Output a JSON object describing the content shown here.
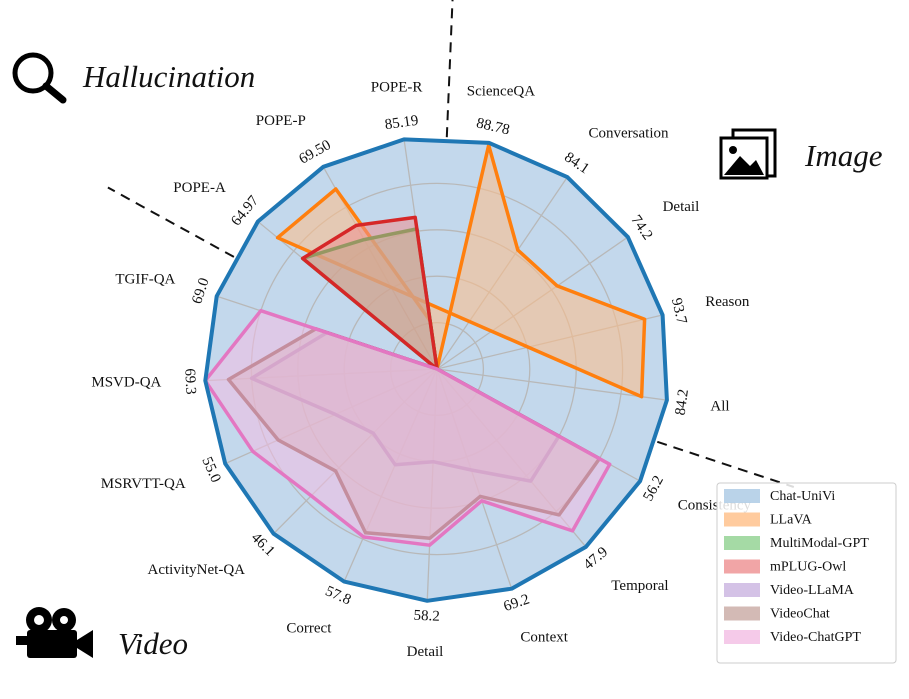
{
  "chart_data": {
    "type": "radar",
    "axes": [
      {
        "label": "ScienceQA",
        "value_label": "88.78",
        "group": "Image"
      },
      {
        "label": "Conversation",
        "value_label": "84.1",
        "group": "Image"
      },
      {
        "label": "Detail",
        "value_label": "74.2",
        "group": "Image"
      },
      {
        "label": "Reason",
        "value_label": "93.7",
        "group": "Image"
      },
      {
        "label": "All",
        "value_label": "84.2",
        "group": "Image"
      },
      {
        "label": "Consistency",
        "value_label": "56.2",
        "group": "Video"
      },
      {
        "label": "Temporal",
        "value_label": "47.9",
        "group": "Video"
      },
      {
        "label": "Context",
        "value_label": "69.2",
        "group": "Video"
      },
      {
        "label": "Detail",
        "value_label": "58.2",
        "group": "Video"
      },
      {
        "label": "Correct",
        "value_label": "57.8",
        "group": "Video"
      },
      {
        "label": "ActivityNet-QA",
        "value_label": "46.1",
        "group": "Video"
      },
      {
        "label": "MSRVTT-QA",
        "value_label": "55.0",
        "group": "Video"
      },
      {
        "label": "MSVD-QA",
        "value_label": "69.3",
        "group": "Video"
      },
      {
        "label": "TGIF-QA",
        "value_label": "69.0",
        "group": "Video"
      },
      {
        "label": "POPE-A",
        "value_label": "64.97",
        "group": "Hallucination"
      },
      {
        "label": "POPE-P",
        "value_label": "69.50",
        "group": "Hallucination"
      },
      {
        "label": "POPE-R",
        "value_label": "85.19",
        "group": "Hallucination"
      }
    ],
    "groups": [
      "Hallucination",
      "Image",
      "Video"
    ],
    "series": [
      {
        "name": "Chat-UniVi",
        "color": "#1f77b4",
        "fill": "#a9c8e4",
        "values": [
          1,
          1,
          1,
          1,
          1,
          1,
          1,
          1,
          1,
          1,
          1,
          1,
          1,
          1,
          1,
          1,
          1
        ]
      },
      {
        "name": "LLaVA",
        "color": "#ff7f0e",
        "fill": "#ffbe86",
        "values": [
          0.99,
          0.62,
          0.63,
          0.92,
          0.89,
          null,
          null,
          null,
          null,
          null,
          null,
          null,
          null,
          null,
          0.89,
          0.89,
          0.21
        ]
      },
      {
        "name": "MultiModal-GPT",
        "color": "#2ca02c",
        "fill": "#8fd18f",
        "values": [
          null,
          null,
          null,
          null,
          null,
          null,
          null,
          null,
          null,
          null,
          null,
          null,
          null,
          null,
          0.75,
          0.64,
          0.61
        ]
      },
      {
        "name": "mPLUG-Owl",
        "color": "#d62728",
        "fill": "#ee8f90",
        "values": [
          null,
          null,
          null,
          null,
          null,
          null,
          null,
          null,
          null,
          null,
          null,
          null,
          null,
          null,
          0.75,
          0.71,
          0.66
        ]
      },
      {
        "name": "Video-LLaMA",
        "color": "#9467bd",
        "fill": "#c9b3e0",
        "values": [
          null,
          null,
          null,
          null,
          null,
          0.6,
          0.63,
          0.46,
          0.4,
          0.45,
          0.39,
          0.48,
          0.8,
          0.5,
          null,
          null,
          null
        ]
      },
      {
        "name": "VideoChat",
        "color": "#8c564b",
        "fill": "#c8a9a3",
        "values": [
          null,
          null,
          null,
          null,
          null,
          0.8,
          0.82,
          0.58,
          0.73,
          0.77,
          0.62,
          0.75,
          0.9,
          0.55,
          null,
          null,
          null
        ]
      },
      {
        "name": "Video-ChatGPT",
        "color": "#e377c2",
        "fill": "#f3bde3",
        "values": [
          null,
          null,
          null,
          null,
          null,
          0.85,
          0.91,
          0.6,
          0.76,
          0.79,
          0.77,
          0.87,
          1,
          0.8,
          null,
          null,
          null
        ]
      }
    ],
    "rlim": [
      0,
      1
    ],
    "grid": true,
    "legend_position": "bottom-right"
  },
  "icons": {
    "hallucination": "magnifier-icon",
    "image": "image-gallery-icon",
    "video": "film-camera-icon"
  }
}
